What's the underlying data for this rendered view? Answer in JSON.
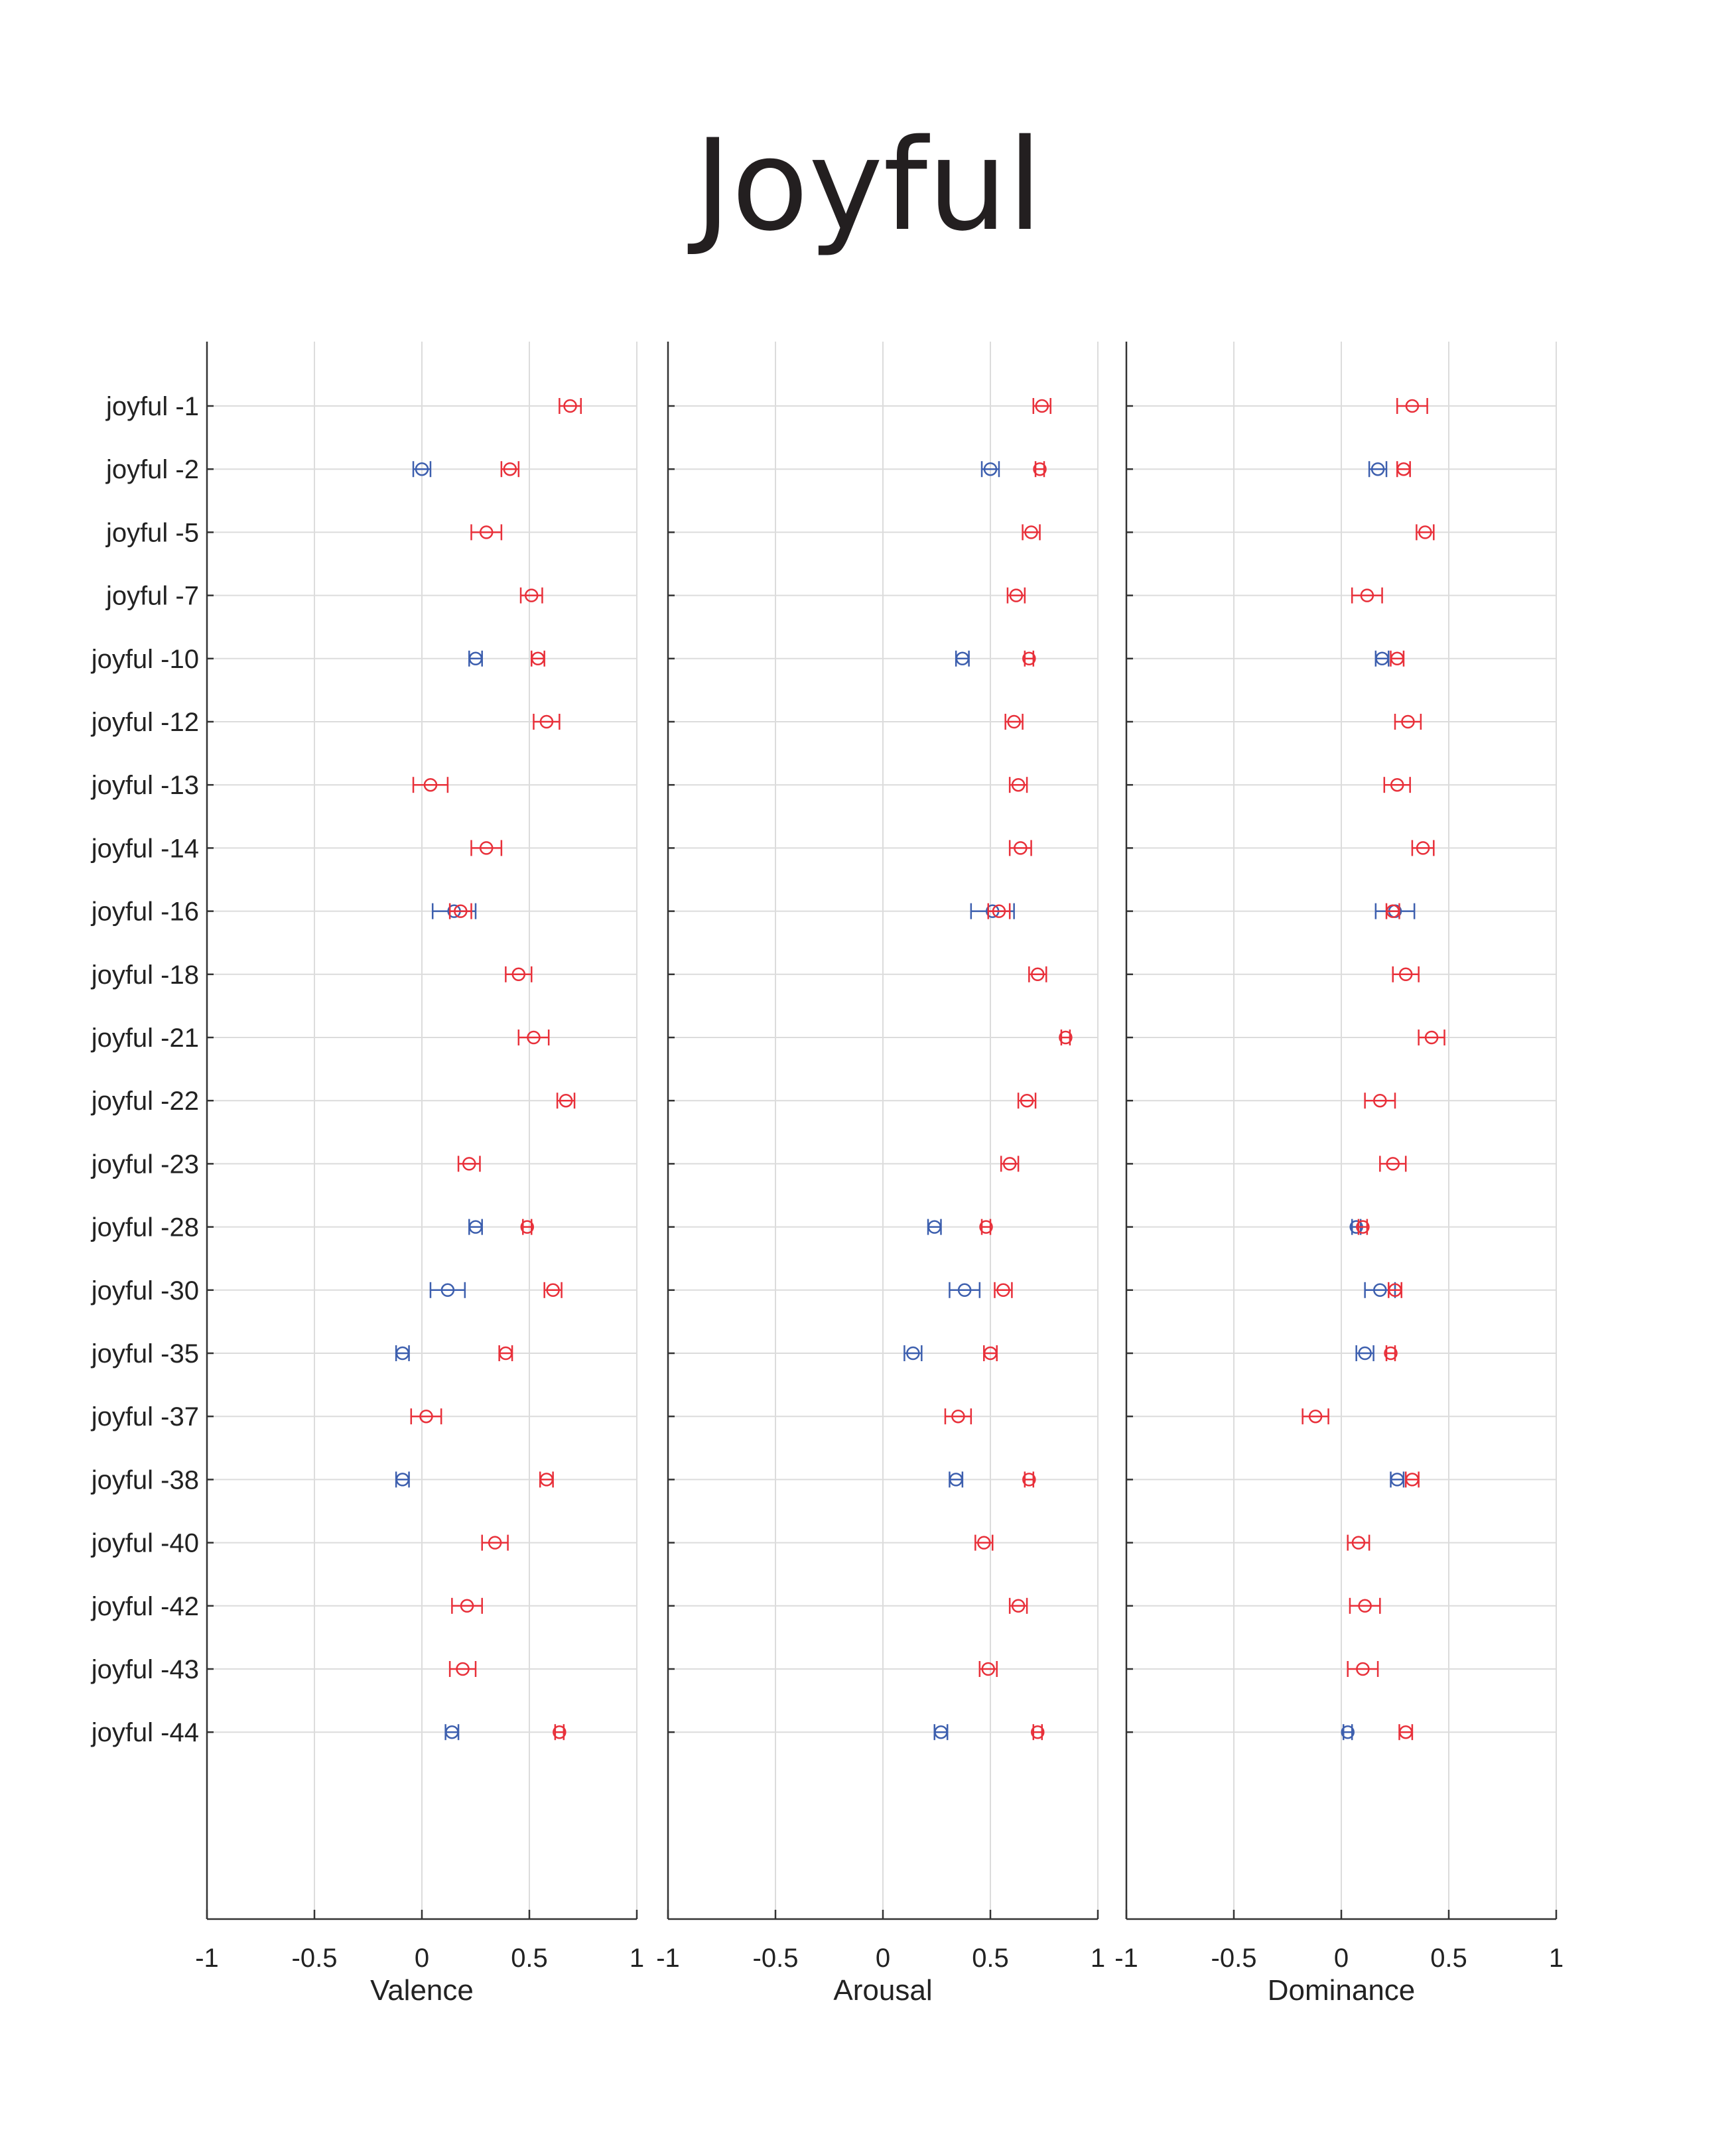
{
  "title": "Joyful",
  "chart_data": {
    "type": "scatter",
    "title": "Joyful",
    "categories": [
      "joyful -1",
      "joyful -2",
      "joyful -5",
      "joyful -7",
      "joyful -10",
      "joyful -12",
      "joyful -13",
      "joyful -14",
      "joyful -16",
      "joyful -18",
      "joyful -21",
      "joyful -22",
      "joyful -23",
      "joyful -28",
      "joyful -30",
      "joyful -35",
      "joyful -37",
      "joyful -38",
      "joyful -40",
      "joyful -42",
      "joyful -43",
      "joyful -44"
    ],
    "xlim": [
      -1,
      1
    ],
    "xticks": [
      -1,
      -0.5,
      0,
      0.5,
      1
    ],
    "xtick_labels": [
      "-1",
      "-0.5",
      "0",
      "0.5",
      "1"
    ],
    "grid": true,
    "colors": {
      "red": "#e8303a",
      "blue": "#3d5fae",
      "grid": "#dcdcdc",
      "axis": "#333333"
    },
    "panels": [
      {
        "xlabel": "Valence",
        "red": [
          [
            0.69,
            0.05
          ],
          [
            0.41,
            0.04
          ],
          [
            0.3,
            0.07
          ],
          [
            0.51,
            0.05
          ],
          [
            0.54,
            0.03
          ],
          [
            0.58,
            0.06
          ],
          [
            0.04,
            0.08
          ],
          [
            0.3,
            0.07
          ],
          [
            0.18,
            0.05
          ],
          [
            0.45,
            0.06
          ],
          [
            0.52,
            0.07
          ],
          [
            0.67,
            0.04
          ],
          [
            0.22,
            0.05
          ],
          [
            0.49,
            0.02
          ],
          [
            0.61,
            0.04
          ],
          [
            0.39,
            0.03
          ],
          [
            0.02,
            0.07
          ],
          [
            0.58,
            0.03
          ],
          [
            0.34,
            0.06
          ],
          [
            0.21,
            0.07
          ],
          [
            0.19,
            0.06
          ],
          [
            0.64,
            0.02
          ]
        ],
        "blue": [
          null,
          [
            0.0,
            0.04
          ],
          null,
          null,
          [
            0.25,
            0.03
          ],
          null,
          null,
          null,
          [
            0.15,
            0.1
          ],
          null,
          null,
          null,
          null,
          [
            0.25,
            0.03
          ],
          [
            0.12,
            0.08
          ],
          [
            -0.09,
            0.03
          ],
          null,
          [
            -0.09,
            0.03
          ],
          null,
          null,
          null,
          [
            0.14,
            0.03
          ]
        ]
      },
      {
        "xlabel": "Arousal",
        "red": [
          [
            0.74,
            0.04
          ],
          [
            0.73,
            0.02
          ],
          [
            0.69,
            0.04
          ],
          [
            0.62,
            0.04
          ],
          [
            0.68,
            0.02
          ],
          [
            0.61,
            0.04
          ],
          [
            0.63,
            0.04
          ],
          [
            0.64,
            0.05
          ],
          [
            0.54,
            0.05
          ],
          [
            0.72,
            0.04
          ],
          [
            0.85,
            0.02
          ],
          [
            0.67,
            0.04
          ],
          [
            0.59,
            0.04
          ],
          [
            0.48,
            0.02
          ],
          [
            0.56,
            0.04
          ],
          [
            0.5,
            0.03
          ],
          [
            0.35,
            0.06
          ],
          [
            0.68,
            0.02
          ],
          [
            0.47,
            0.04
          ],
          [
            0.63,
            0.04
          ],
          [
            0.49,
            0.04
          ],
          [
            0.72,
            0.02
          ]
        ],
        "blue": [
          null,
          [
            0.5,
            0.04
          ],
          null,
          null,
          [
            0.37,
            0.03
          ],
          null,
          null,
          null,
          [
            0.51,
            0.1
          ],
          null,
          null,
          null,
          null,
          [
            0.24,
            0.03
          ],
          [
            0.38,
            0.07
          ],
          [
            0.14,
            0.04
          ],
          null,
          [
            0.34,
            0.03
          ],
          null,
          null,
          null,
          [
            0.27,
            0.03
          ]
        ]
      },
      {
        "xlabel": "Dominance",
        "red": [
          [
            0.33,
            0.07
          ],
          [
            0.29,
            0.03
          ],
          [
            0.39,
            0.04
          ],
          [
            0.12,
            0.07
          ],
          [
            0.26,
            0.03
          ],
          [
            0.31,
            0.06
          ],
          [
            0.26,
            0.06
          ],
          [
            0.38,
            0.05
          ],
          [
            0.24,
            0.03
          ],
          [
            0.3,
            0.06
          ],
          [
            0.42,
            0.06
          ],
          [
            0.18,
            0.07
          ],
          [
            0.24,
            0.06
          ],
          [
            0.1,
            0.02
          ],
          [
            0.25,
            0.03
          ],
          [
            0.23,
            0.02
          ],
          [
            -0.12,
            0.06
          ],
          [
            0.33,
            0.03
          ],
          [
            0.08,
            0.05
          ],
          [
            0.11,
            0.07
          ],
          [
            0.1,
            0.07
          ],
          [
            0.3,
            0.03
          ]
        ],
        "blue": [
          null,
          [
            0.17,
            0.04
          ],
          null,
          null,
          [
            0.19,
            0.03
          ],
          null,
          null,
          null,
          [
            0.25,
            0.09
          ],
          null,
          null,
          null,
          null,
          [
            0.07,
            0.02
          ],
          [
            0.18,
            0.07
          ],
          [
            0.11,
            0.04
          ],
          null,
          [
            0.26,
            0.03
          ],
          null,
          null,
          null,
          [
            0.03,
            0.02
          ]
        ]
      }
    ]
  }
}
